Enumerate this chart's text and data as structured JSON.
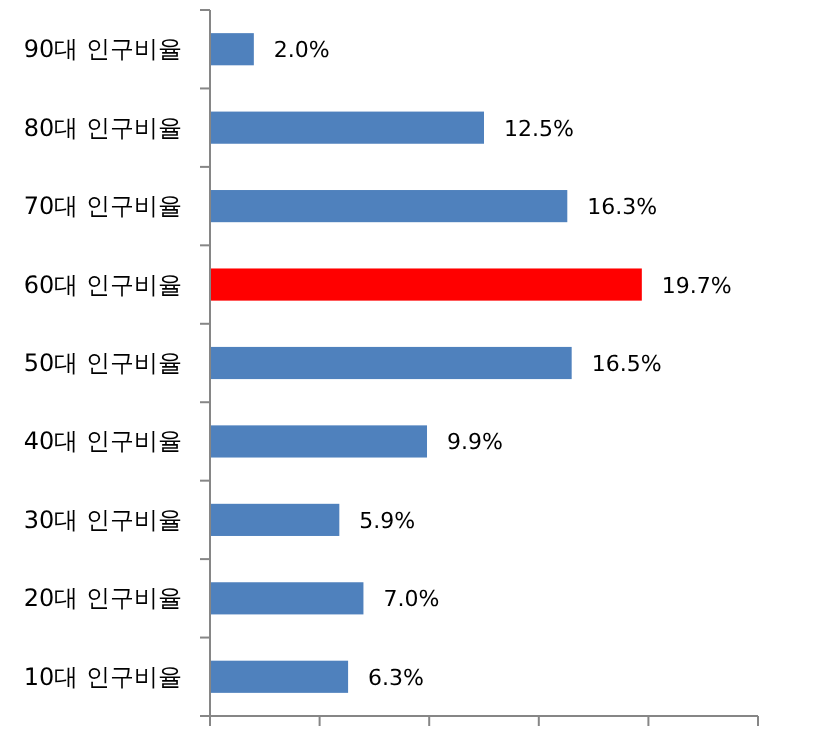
{
  "chart_data": {
    "type": "bar",
    "orientation": "horizontal",
    "categories": [
      "90대 인구비율",
      "80대 인구비율",
      "70대 인구비율",
      "60대 인구비율",
      "50대 인구비율",
      "40대 인구비율",
      "30대 인구비율",
      "20대 인구비율",
      "10대 인구비율"
    ],
    "values": [
      2.0,
      12.5,
      16.3,
      19.7,
      16.5,
      9.9,
      5.9,
      7.0,
      6.3
    ],
    "value_labels": [
      "2.0%",
      "12.5%",
      "16.3%",
      "19.7%",
      "16.5%",
      "9.9%",
      "5.9%",
      "7.0%",
      "6.3%"
    ],
    "colors": [
      "#4f81bd",
      "#4f81bd",
      "#4f81bd",
      "#ff0000",
      "#4f81bd",
      "#4f81bd",
      "#4f81bd",
      "#4f81bd",
      "#4f81bd"
    ],
    "xlim": [
      0,
      25
    ],
    "xticks": [
      {
        "value": 0,
        "label": null
      },
      {
        "value": 5,
        "label": null
      },
      {
        "value": 10,
        "label": null
      },
      {
        "value": 15,
        "label": null
      },
      {
        "value": 20,
        "label": null
      },
      {
        "value": 25,
        "label": null
      }
    ],
    "tick_labels": "y"
  }
}
